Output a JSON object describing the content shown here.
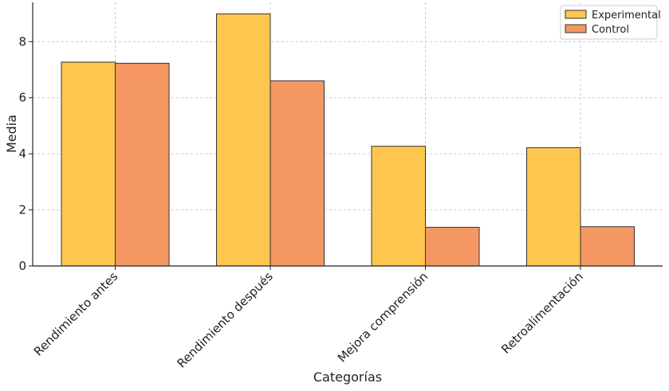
{
  "chart_data": {
    "type": "bar",
    "title": "",
    "xlabel": "Categorías",
    "ylabel": "Media",
    "categories": [
      "Rendimiento antes",
      "Rendimiento después",
      "Mejora comprensión",
      "Retroalimentación"
    ],
    "series": [
      {
        "name": "Experimental",
        "values": [
          7.27,
          8.99,
          4.27,
          4.22
        ],
        "color": "#FDC64E"
      },
      {
        "name": "Control",
        "values": [
          7.23,
          6.6,
          1.38,
          1.4
        ],
        "color": "#F59763"
      }
    ],
    "ylim": [
      0,
      9.4
    ],
    "yticks": [
      0,
      2,
      4,
      6,
      8
    ],
    "grid": true,
    "legend_position": "top-right",
    "bar_edge_color": "#333333"
  }
}
